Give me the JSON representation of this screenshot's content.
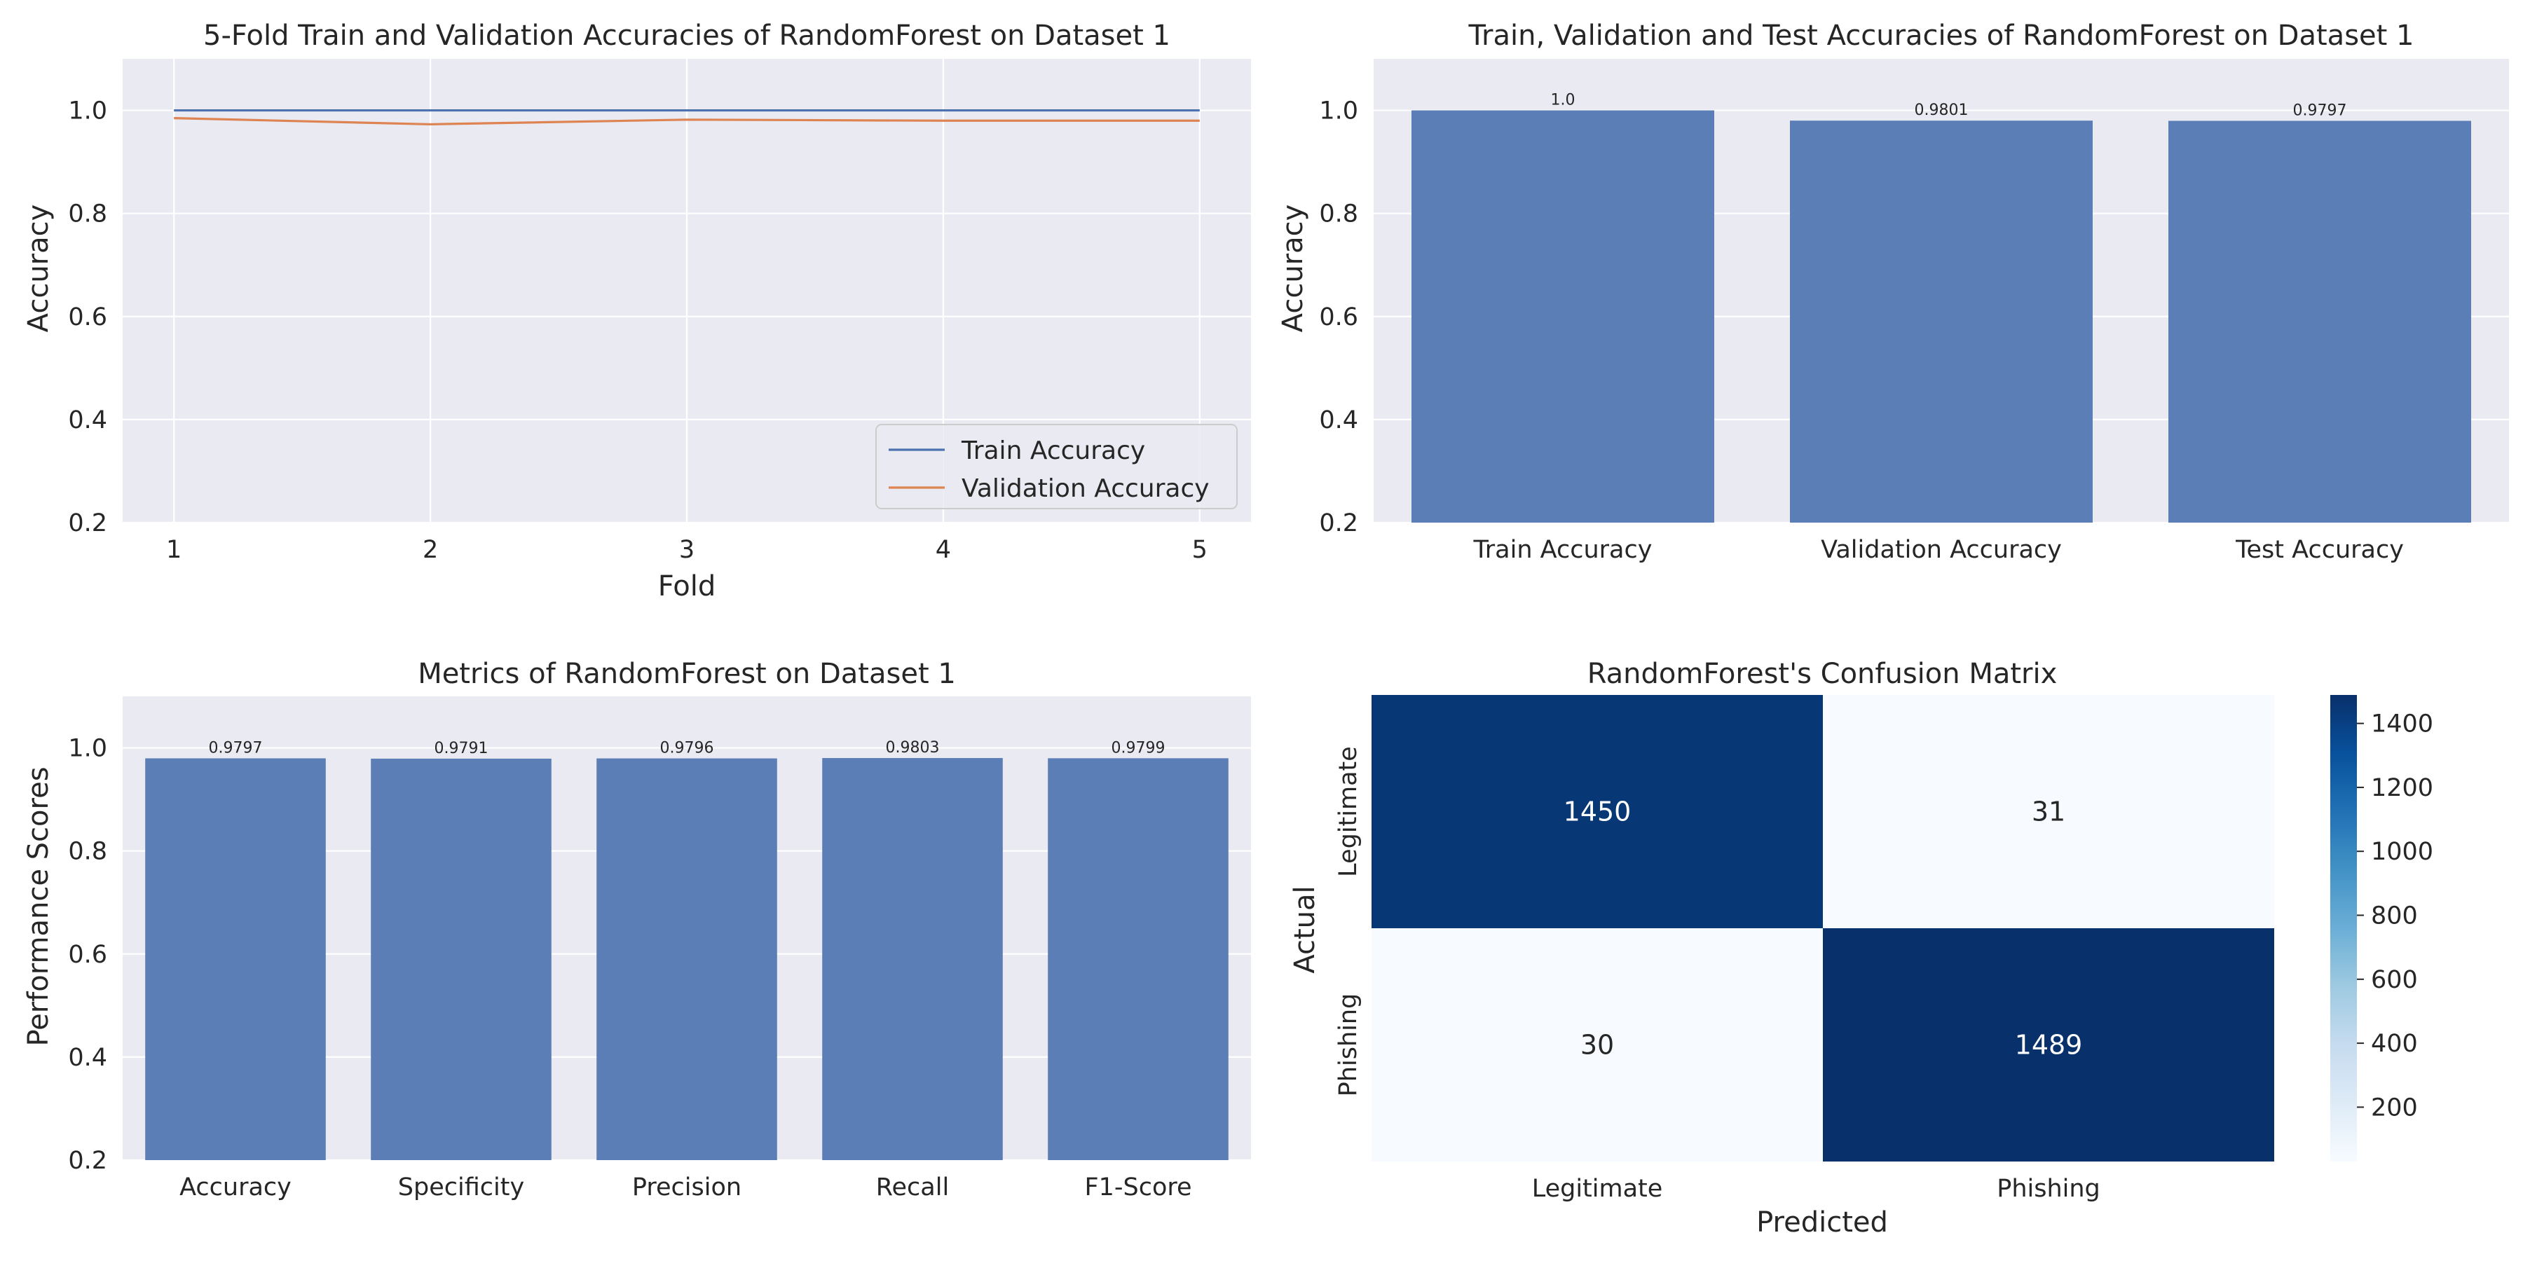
{
  "colors": {
    "axes_bg": "#eaeaf2",
    "grid": "#ffffff",
    "bar": "#5b7eb6",
    "train_line": "#4c72b0",
    "val_line": "#dd8452",
    "cm_dark": "#08306b",
    "cm_light": "#f7fbff"
  },
  "chart_data": [
    {
      "type": "line",
      "title": "5-Fold Train and Validation Accuracies of RandomForest on Dataset 1",
      "xlabel": "Fold",
      "ylabel": "Accuracy",
      "x": [
        1,
        2,
        3,
        4,
        5
      ],
      "xticks": [
        "1",
        "2",
        "3",
        "4",
        "5"
      ],
      "xlim": [
        0.8,
        5.2
      ],
      "ylim": [
        0.2,
        1.1
      ],
      "yticks": [
        "0.2",
        "0.4",
        "0.6",
        "0.8",
        "1.0"
      ],
      "grid": true,
      "legend_position": "bottom-right",
      "series": [
        {
          "name": "Train Accuracy",
          "values": [
            1.0,
            1.0,
            1.0,
            1.0,
            1.0
          ]
        },
        {
          "name": "Validation Accuracy",
          "values": [
            0.985,
            0.973,
            0.982,
            0.98,
            0.98
          ]
        }
      ]
    },
    {
      "type": "bar",
      "title": "Train, Validation and Test Accuracies of RandomForest on Dataset 1",
      "ylabel": "Accuracy",
      "categories": [
        "Train Accuracy",
        "Validation Accuracy",
        "Test Accuracy"
      ],
      "values": [
        1.0,
        0.9801,
        0.9797
      ],
      "value_labels": [
        "1.0",
        "0.9801",
        "0.9797"
      ],
      "ylim": [
        0.2,
        1.1
      ],
      "yticks": [
        "0.2",
        "0.4",
        "0.6",
        "0.8",
        "1.0"
      ],
      "grid": true
    },
    {
      "type": "bar",
      "title": "Metrics of RandomForest on Dataset 1",
      "ylabel": "Performance Scores",
      "categories": [
        "Accuracy",
        "Specificity",
        "Precision",
        "Recall",
        "F1-Score"
      ],
      "values": [
        0.9797,
        0.9791,
        0.9796,
        0.9803,
        0.9799
      ],
      "value_labels": [
        "0.9797",
        "0.9791",
        "0.9796",
        "0.9803",
        "0.9799"
      ],
      "ylim": [
        0.2,
        1.1
      ],
      "yticks": [
        "0.2",
        "0.4",
        "0.6",
        "0.8",
        "1.0"
      ],
      "grid": true
    },
    {
      "type": "heatmap",
      "title": "RandomForest's Confusion Matrix",
      "xlabel": "Predicted",
      "ylabel": "Actual",
      "x_categories": [
        "Legitimate",
        "Phishing"
      ],
      "y_categories": [
        "Legitimate",
        "Phishing"
      ],
      "values": [
        [
          1450,
          31
        ],
        [
          30,
          1489
        ]
      ],
      "value_labels": [
        [
          "1450",
          "31"
        ],
        [
          "30",
          "1489"
        ]
      ],
      "color_range": [
        30,
        1489
      ],
      "colorbar_ticks": [
        "200",
        "400",
        "600",
        "800",
        "1000",
        "1200",
        "1400"
      ],
      "colormap": "Blues"
    }
  ]
}
